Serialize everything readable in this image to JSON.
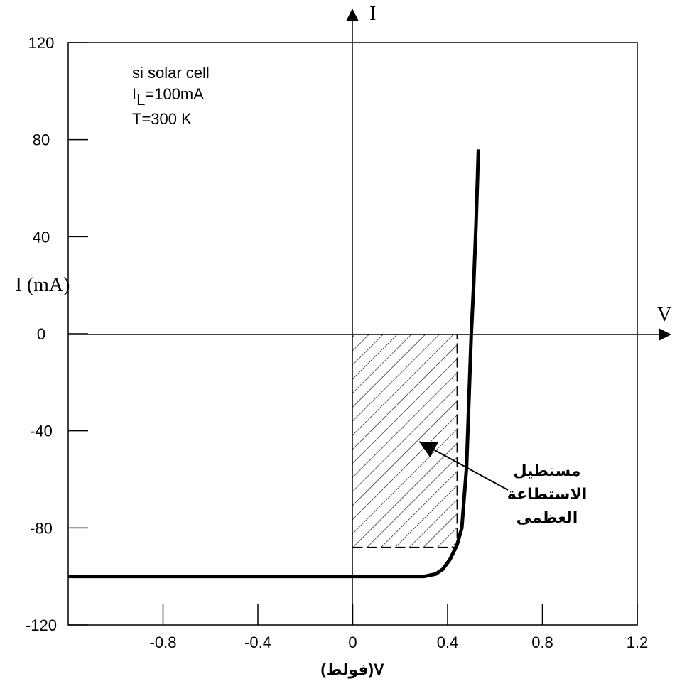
{
  "chart_data": {
    "type": "line",
    "xlabel": "V(فولط)",
    "ylabel": "I (mA)",
    "x_axis_name": "V",
    "y_axis_name": "I",
    "cell_label": "si solar cell",
    "current_label": {
      "symbol": "I",
      "subscript": "L",
      "value": "=100mA"
    },
    "temp_label": "T=300 K",
    "max_power_label": [
      "مستطيل",
      "الاستطاعة",
      "العظمى"
    ],
    "max_power": {
      "voltage": 0.44,
      "current": -88
    },
    "xlim": [
      -1.2,
      1.2
    ],
    "ylim": [
      -120,
      120
    ],
    "xticks": [
      -0.8,
      -0.4,
      0,
      0.4,
      0.8,
      1.2
    ],
    "yticks": [
      120,
      80,
      40,
      0,
      -40,
      -80,
      -120
    ],
    "grid": false,
    "series": [
      {
        "color": "#000000",
        "x": [
          -1.2,
          0.3,
          0.35,
          0.38,
          0.41,
          0.44,
          0.46,
          0.48,
          0.5,
          0.51,
          0.52,
          0.53
        ],
        "y": [
          -100,
          -100,
          -99,
          -97,
          -93,
          -87,
          -80,
          -55,
          0,
          20,
          45,
          76
        ]
      }
    ]
  }
}
